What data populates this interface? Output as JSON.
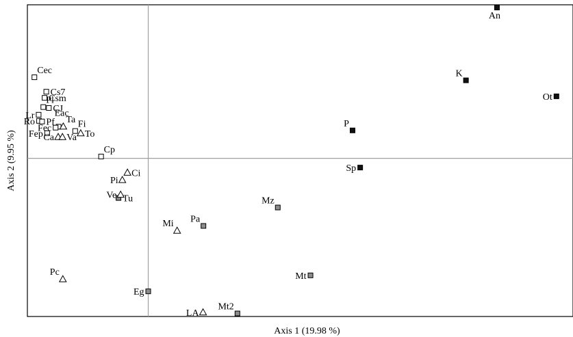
{
  "chart_data": {
    "type": "scatter",
    "title": "",
    "xlabel": "Axis 1 (19.98 %)",
    "ylabel": "Axis 2 (9.95 %)",
    "xlim": [
      -0.2845,
      1.0
    ],
    "ylim": [
      -0.5149,
      0.5
    ],
    "grid": false,
    "reference_lines": {
      "x": 0,
      "y": 0
    },
    "colors": {
      "white": "#ffffff",
      "grey": "#8c8c8c",
      "black": "#111111",
      "triangle": "#ffffff",
      "stroke": "#000000",
      "frame": "#000000",
      "ref": "#a0a0a0"
    },
    "points": [
      {
        "label": "An",
        "x": 0.821,
        "y": 0.491,
        "marker": "square",
        "fill": "black",
        "label_pos": "below"
      },
      {
        "label": "K",
        "x": 0.748,
        "y": 0.254,
        "marker": "square",
        "fill": "black",
        "label_pos": "above-left"
      },
      {
        "label": "Ot",
        "x": 0.961,
        "y": 0.202,
        "marker": "square",
        "fill": "black",
        "label_pos": "left"
      },
      {
        "label": "P",
        "x": 0.481,
        "y": 0.091,
        "marker": "square",
        "fill": "black",
        "label_pos": "above-left"
      },
      {
        "label": "Sp",
        "x": 0.499,
        "y": -0.03,
        "marker": "square",
        "fill": "black",
        "label_pos": "left"
      },
      {
        "label": "Mz",
        "x": 0.305,
        "y": -0.16,
        "marker": "square",
        "fill": "grey",
        "label_pos": "above-left"
      },
      {
        "label": "Pa",
        "x": 0.13,
        "y": -0.22,
        "marker": "square",
        "fill": "grey",
        "label_pos": "above-left"
      },
      {
        "label": "Mt",
        "x": 0.382,
        "y": -0.381,
        "marker": "square",
        "fill": "grey",
        "label_pos": "left"
      },
      {
        "label": "Eg",
        "x": 0.0,
        "y": -0.433,
        "marker": "square",
        "fill": "grey",
        "label_pos": "left"
      },
      {
        "label": "Mt2",
        "x": 0.21,
        "y": -0.505,
        "marker": "square",
        "fill": "grey",
        "label_pos": "above-left"
      },
      {
        "label": "Tu",
        "x": -0.07,
        "y": -0.129,
        "marker": "square",
        "fill": "grey",
        "label_pos": "right"
      },
      {
        "label": "Cec",
        "x": -0.268,
        "y": 0.264,
        "marker": "square",
        "fill": "white",
        "label_pos": "above-right"
      },
      {
        "label": "Cs7",
        "x": -0.24,
        "y": 0.217,
        "marker": "square",
        "fill": "white",
        "label_pos": "right"
      },
      {
        "label": "Csm",
        "x": -0.244,
        "y": 0.197,
        "marker": "square",
        "fill": "white",
        "label_pos": "right"
      },
      {
        "label": "Pl",
        "x": -0.247,
        "y": 0.167,
        "marker": "square",
        "fill": "white",
        "label_pos": "above-right"
      },
      {
        "label": "CJ",
        "x": -0.234,
        "y": 0.164,
        "marker": "square",
        "fill": "white",
        "label_pos": "right"
      },
      {
        "label": "Lr",
        "x": -0.258,
        "y": 0.142,
        "marker": "square",
        "fill": "white",
        "label_pos": "left"
      },
      {
        "label": "Ro",
        "x": -0.257,
        "y": 0.122,
        "marker": "square",
        "fill": "white",
        "label_pos": "left"
      },
      {
        "label": "Pf",
        "x": -0.25,
        "y": 0.12,
        "marker": "square",
        "fill": "white",
        "label_pos": "right"
      },
      {
        "label": "Fep",
        "x": -0.238,
        "y": 0.082,
        "marker": "square",
        "fill": "white",
        "label_pos": "left"
      },
      {
        "label": "Eac",
        "x": -0.211,
        "y": 0.103,
        "marker": "square",
        "fill": "white",
        "label_pos": "above-left-high"
      },
      {
        "label": "Fec",
        "x": -0.218,
        "y": 0.1,
        "marker": "square",
        "fill": "white",
        "label_pos": "left"
      },
      {
        "label": "Ta",
        "x": -0.2,
        "y": 0.104,
        "marker": "triangle",
        "fill": "triangle",
        "label_pos": "above-right"
      },
      {
        "label": "Fi",
        "x": -0.172,
        "y": 0.089,
        "marker": "square",
        "fill": "white",
        "label_pos": "above-right"
      },
      {
        "label": "To",
        "x": -0.159,
        "y": 0.082,
        "marker": "triangle",
        "fill": "triangle",
        "label_pos": "right"
      },
      {
        "label": "Ca",
        "x": -0.212,
        "y": 0.07,
        "marker": "triangle",
        "fill": "triangle",
        "label_pos": "left"
      },
      {
        "label": "Va",
        "x": -0.202,
        "y": 0.07,
        "marker": "triangle",
        "fill": "triangle",
        "label_pos": "right"
      },
      {
        "label": "Cp",
        "x": -0.111,
        "y": 0.006,
        "marker": "square",
        "fill": "white",
        "label_pos": "above-right"
      },
      {
        "label": "Ci",
        "x": -0.049,
        "y": -0.046,
        "marker": "triangle",
        "fill": "triangle",
        "label_pos": "right"
      },
      {
        "label": "Pi",
        "x": -0.061,
        "y": -0.07,
        "marker": "triangle",
        "fill": "triangle",
        "label_pos": "left"
      },
      {
        "label": "Ve",
        "x": -0.065,
        "y": -0.118,
        "marker": "triangle",
        "fill": "triangle",
        "label_pos": "left"
      },
      {
        "label": "Mi",
        "x": 0.068,
        "y": -0.235,
        "marker": "triangle",
        "fill": "triangle",
        "label_pos": "above-left"
      },
      {
        "label": "Pc",
        "x": -0.201,
        "y": -0.393,
        "marker": "triangle",
        "fill": "triangle",
        "label_pos": "above-left"
      },
      {
        "label": "LA",
        "x": 0.129,
        "y": -0.501,
        "marker": "triangle",
        "fill": "triangle",
        "label_pos": "left"
      }
    ]
  }
}
